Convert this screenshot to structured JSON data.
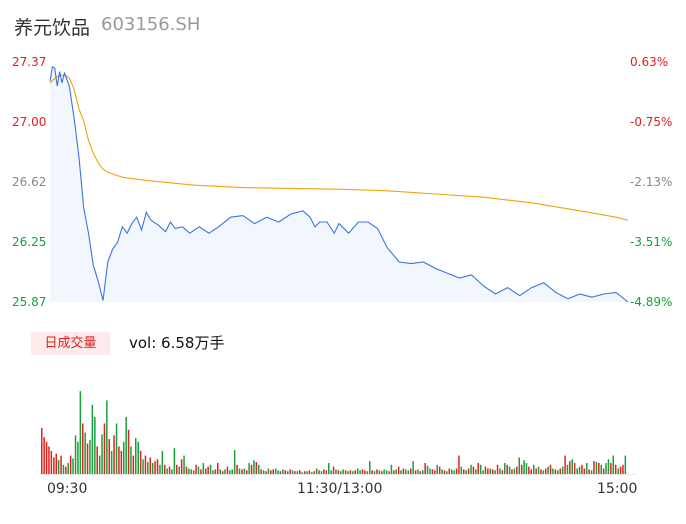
{
  "header": {
    "name": "养元饮品",
    "code": "603156.SH"
  },
  "price_axis": {
    "left_labels": [
      "27.37",
      "27.00",
      "26.62",
      "26.25",
      "25.87"
    ],
    "right_labels": [
      "0.63%",
      "-0.75%",
      "-2.13%",
      "-3.51%",
      "-4.89%"
    ]
  },
  "volume_panel": {
    "tag": "日成交量",
    "vol_text": "vol: 6.58万手"
  },
  "time_axis": {
    "labels": [
      "09:30",
      "11:30/13:00",
      "15:00"
    ]
  },
  "colors": {
    "price_line": "#3b74e4",
    "avg_line": "#f0a30a",
    "up": "#e0211d",
    "down": "#16a03c",
    "area_fill": "#f2f6fd"
  },
  "chart_data": [
    {
      "type": "line",
      "title": "",
      "xlabel": "",
      "ylabel": "",
      "ylim": [
        25.87,
        27.37
      ],
      "y2lim": [
        -4.89,
        0.63
      ],
      "x_ticks": [
        "09:30",
        "11:30/13:00",
        "15:00"
      ],
      "series": [
        {
          "x": [
            0,
            1,
            2,
            3,
            4,
            5,
            6,
            8,
            10,
            12,
            14,
            16,
            18,
            20,
            22,
            24,
            26,
            28,
            30,
            32,
            34,
            36,
            38,
            40,
            42,
            45,
            48,
            50,
            52,
            55,
            58,
            62,
            66,
            70,
            75,
            80,
            85,
            90,
            95,
            100,
            105,
            108,
            110,
            112,
            115,
            118,
            120,
            124,
            128,
            132,
            136,
            140,
            145,
            150,
            155,
            160,
            165,
            170,
            175,
            180,
            185,
            190,
            195,
            200,
            205,
            210,
            215,
            220,
            225,
            230,
            235,
            240
          ],
          "values": [
            27.25,
            27.34,
            27.33,
            27.22,
            27.31,
            27.24,
            27.3,
            27.22,
            27.02,
            26.78,
            26.46,
            26.3,
            26.1,
            26.0,
            25.88,
            26.12,
            26.2,
            26.24,
            26.34,
            26.3,
            26.36,
            26.4,
            26.32,
            26.43,
            26.38,
            26.35,
            26.31,
            26.37,
            26.33,
            26.34,
            26.3,
            26.34,
            26.3,
            26.34,
            26.4,
            26.41,
            26.36,
            26.4,
            26.37,
            26.42,
            26.44,
            26.4,
            26.34,
            26.37,
            26.37,
            26.3,
            26.36,
            26.3,
            26.37,
            26.37,
            26.33,
            26.21,
            26.12,
            26.11,
            26.12,
            26.08,
            26.05,
            26.02,
            26.04,
            25.97,
            25.92,
            25.96,
            25.91,
            25.96,
            25.99,
            25.93,
            25.89,
            25.92,
            25.9,
            25.92,
            25.93,
            25.87
          ]
        },
        {
          "x": [
            0,
            3,
            6,
            8,
            10,
            12,
            14,
            16,
            18,
            20,
            22,
            24,
            26,
            28,
            30,
            32,
            35,
            40,
            50,
            60,
            80,
            100,
            120,
            140,
            160,
            180,
            200,
            220,
            235,
            240
          ],
          "values": [
            27.24,
            27.28,
            27.29,
            27.27,
            27.2,
            27.08,
            27.0,
            26.88,
            26.8,
            26.74,
            26.7,
            26.68,
            26.67,
            26.66,
            26.65,
            26.645,
            26.64,
            26.63,
            26.615,
            26.6,
            26.585,
            26.58,
            26.575,
            26.565,
            26.545,
            26.525,
            26.49,
            26.44,
            26.4,
            26.38
          ]
        }
      ]
    },
    {
      "type": "bar",
      "title": "",
      "xlabel": "",
      "ylabel": "",
      "ylim": [
        0,
        1
      ],
      "x_ticks": [
        "09:30",
        "11:30/13:00",
        "15:00"
      ],
      "values": [
        0.5,
        0.4,
        0.35,
        0.3,
        0.25,
        0.18,
        0.22,
        0.15,
        0.2,
        0.1,
        0.08,
        0.12,
        0.2,
        0.17,
        0.42,
        0.35,
        0.9,
        0.55,
        0.45,
        0.33,
        0.37,
        0.75,
        0.62,
        0.3,
        0.2,
        0.43,
        0.55,
        0.8,
        0.38,
        0.25,
        0.42,
        0.55,
        0.3,
        0.25,
        0.35,
        0.62,
        0.48,
        0.3,
        0.2,
        0.39,
        0.35,
        0.25,
        0.16,
        0.2,
        0.13,
        0.18,
        0.12,
        0.14,
        0.16,
        0.1,
        0.25,
        0.1,
        0.06,
        0.08,
        0.05,
        0.28,
        0.1,
        0.08,
        0.16,
        0.2,
        0.08,
        0.06,
        0.05,
        0.04,
        0.1,
        0.08,
        0.05,
        0.12,
        0.06,
        0.08,
        0.1,
        0.04,
        0.05,
        0.12,
        0.05,
        0.03,
        0.05,
        0.08,
        0.04,
        0.05,
        0.26,
        0.1,
        0.06,
        0.05,
        0.06,
        0.04,
        0.12,
        0.1,
        0.15,
        0.13,
        0.1,
        0.05,
        0.04,
        0.03,
        0.06,
        0.04,
        0.05,
        0.06,
        0.04,
        0.03,
        0.05,
        0.04,
        0.03,
        0.05,
        0.04,
        0.03,
        0.03,
        0.04,
        0.02,
        0.03,
        0.03,
        0.04,
        0.02,
        0.03,
        0.06,
        0.04,
        0.03,
        0.05,
        0.04,
        0.12,
        0.04,
        0.08,
        0.05,
        0.04,
        0.03,
        0.05,
        0.04,
        0.03,
        0.04,
        0.03,
        0.04,
        0.06,
        0.04,
        0.05,
        0.04,
        0.03,
        0.14,
        0.04,
        0.03,
        0.05,
        0.04,
        0.03,
        0.05,
        0.04,
        0.03,
        0.1,
        0.04,
        0.05,
        0.08,
        0.04,
        0.06,
        0.05,
        0.04,
        0.06,
        0.14,
        0.04,
        0.05,
        0.03,
        0.04,
        0.12,
        0.09,
        0.06,
        0.05,
        0.04,
        0.1,
        0.08,
        0.05,
        0.04,
        0.03,
        0.06,
        0.05,
        0.04,
        0.06,
        0.2,
        0.08,
        0.05,
        0.04,
        0.06,
        0.1,
        0.08,
        0.05,
        0.12,
        0.1,
        0.04,
        0.08,
        0.06,
        0.06,
        0.05,
        0.04,
        0.1,
        0.06,
        0.04,
        0.12,
        0.1,
        0.08,
        0.05,
        0.06,
        0.08,
        0.18,
        0.1,
        0.15,
        0.12,
        0.08,
        0.05,
        0.1,
        0.06,
        0.08,
        0.05,
        0.04,
        0.06,
        0.08,
        0.1,
        0.06,
        0.05,
        0.04,
        0.06,
        0.08,
        0.2,
        0.1,
        0.14,
        0.16,
        0.12,
        0.06,
        0.08,
        0.1,
        0.06,
        0.12,
        0.05,
        0.04,
        0.14,
        0.13,
        0.12,
        0.1,
        0.06,
        0.12,
        0.16,
        0.12,
        0.2,
        0.1,
        0.06,
        0.08,
        0.1,
        0.2
      ],
      "colors": [
        "r",
        "r",
        "r",
        "r",
        "r",
        "r",
        "r",
        "g",
        "r",
        "g",
        "r",
        "g",
        "r",
        "g",
        "g",
        "g",
        "g",
        "r",
        "g",
        "r",
        "g",
        "g",
        "g",
        "r",
        "g",
        "g",
        "r",
        "g",
        "r",
        "g",
        "r",
        "g",
        "r",
        "r",
        "g",
        "g",
        "r",
        "g",
        "r",
        "g",
        "g",
        "r",
        "g",
        "r",
        "g",
        "r",
        "g",
        "r",
        "r",
        "g",
        "g",
        "r",
        "g",
        "r",
        "g",
        "g",
        "r",
        "g",
        "r",
        "g",
        "r",
        "g",
        "g",
        "r",
        "r",
        "g",
        "r",
        "g",
        "r",
        "r",
        "g",
        "g",
        "r",
        "r",
        "g",
        "r",
        "g",
        "r",
        "g",
        "g",
        "g",
        "r",
        "g",
        "r",
        "g",
        "r",
        "g",
        "r",
        "g",
        "r",
        "g",
        "r",
        "g",
        "r",
        "g",
        "r",
        "r",
        "g",
        "g",
        "r",
        "g",
        "r",
        "g",
        "r",
        "g",
        "r",
        "g",
        "r",
        "g",
        "r",
        "g",
        "r",
        "g",
        "r",
        "g",
        "r",
        "g",
        "r",
        "r",
        "g",
        "g",
        "r",
        "g",
        "r",
        "g",
        "g",
        "r",
        "g",
        "r",
        "g",
        "r",
        "g",
        "g",
        "r",
        "r",
        "g",
        "g",
        "r",
        "g",
        "r",
        "g",
        "r",
        "g",
        "g",
        "r",
        "g",
        "r",
        "g",
        "r",
        "g",
        "r",
        "g",
        "g",
        "r",
        "g",
        "r",
        "g",
        "r",
        "g",
        "r",
        "g",
        "g",
        "r",
        "r",
        "g",
        "r",
        "g",
        "r",
        "g",
        "r",
        "g",
        "g",
        "r",
        "r",
        "g",
        "r",
        "g",
        "r",
        "g",
        "r",
        "g",
        "r",
        "g",
        "g",
        "r",
        "r",
        "g",
        "r",
        "g",
        "r",
        "g",
        "r",
        "g",
        "r",
        "g",
        "r",
        "g",
        "r",
        "g",
        "r",
        "g",
        "g",
        "r",
        "r",
        "g",
        "r",
        "g",
        "r",
        "g",
        "r",
        "g",
        "r",
        "g",
        "r",
        "g",
        "r",
        "g",
        "r",
        "g",
        "r",
        "g",
        "r",
        "g",
        "g",
        "r",
        "r",
        "g",
        "r",
        "g",
        "r",
        "g",
        "r",
        "g",
        "r",
        "g",
        "g",
        "r",
        "g",
        "r",
        "g",
        "r",
        "r",
        "g",
        "r",
        "g",
        "r",
        "r"
      ]
    }
  ]
}
